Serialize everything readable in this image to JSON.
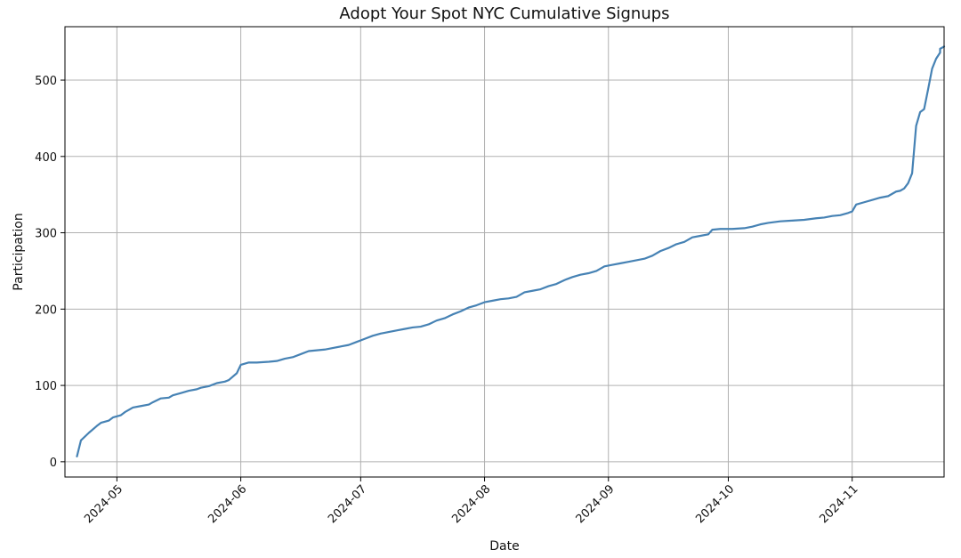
{
  "chart_data": {
    "type": "line",
    "title": "Adopt Your Spot NYC Cumulative Signups",
    "xlabel": "Date",
    "ylabel": "Participation",
    "x_range": [
      "2024-04-18",
      "2024-11-24"
    ],
    "ylim": [
      -20,
      570
    ],
    "grid": true,
    "x_ticks": [
      {
        "date": "2024-05-01",
        "label": "2024-05"
      },
      {
        "date": "2024-06-01",
        "label": "2024-06"
      },
      {
        "date": "2024-07-01",
        "label": "2024-07"
      },
      {
        "date": "2024-08-01",
        "label": "2024-08"
      },
      {
        "date": "2024-09-01",
        "label": "2024-09"
      },
      {
        "date": "2024-10-01",
        "label": "2024-10"
      },
      {
        "date": "2024-11-01",
        "label": "2024-11"
      }
    ],
    "y_ticks": [
      0,
      100,
      200,
      300,
      400,
      500
    ],
    "series": [
      {
        "color": "#4682b4",
        "points": [
          [
            "2024-04-21",
            7
          ],
          [
            "2024-04-22",
            28
          ],
          [
            "2024-04-24",
            38
          ],
          [
            "2024-04-26",
            47
          ],
          [
            "2024-04-27",
            51
          ],
          [
            "2024-04-29",
            54
          ],
          [
            "2024-04-30",
            58
          ],
          [
            "2024-05-02",
            61
          ],
          [
            "2024-05-03",
            65
          ],
          [
            "2024-05-05",
            71
          ],
          [
            "2024-05-07",
            73
          ],
          [
            "2024-05-09",
            75
          ],
          [
            "2024-05-10",
            78
          ],
          [
            "2024-05-12",
            83
          ],
          [
            "2024-05-14",
            84
          ],
          [
            "2024-05-15",
            87
          ],
          [
            "2024-05-17",
            90
          ],
          [
            "2024-05-19",
            93
          ],
          [
            "2024-05-21",
            95
          ],
          [
            "2024-05-22",
            97
          ],
          [
            "2024-05-24",
            99
          ],
          [
            "2024-05-26",
            103
          ],
          [
            "2024-05-28",
            105
          ],
          [
            "2024-05-29",
            107
          ],
          [
            "2024-05-31",
            116
          ],
          [
            "2024-06-01",
            127
          ],
          [
            "2024-06-03",
            130
          ],
          [
            "2024-06-05",
            130
          ],
          [
            "2024-06-08",
            131
          ],
          [
            "2024-06-10",
            132
          ],
          [
            "2024-06-12",
            135
          ],
          [
            "2024-06-14",
            137
          ],
          [
            "2024-06-16",
            141
          ],
          [
            "2024-06-18",
            145
          ],
          [
            "2024-06-20",
            146
          ],
          [
            "2024-06-22",
            147
          ],
          [
            "2024-06-24",
            149
          ],
          [
            "2024-06-26",
            151
          ],
          [
            "2024-06-28",
            153
          ],
          [
            "2024-06-30",
            157
          ],
          [
            "2024-07-02",
            161
          ],
          [
            "2024-07-04",
            165
          ],
          [
            "2024-07-06",
            168
          ],
          [
            "2024-07-08",
            170
          ],
          [
            "2024-07-10",
            172
          ],
          [
            "2024-07-12",
            174
          ],
          [
            "2024-07-14",
            176
          ],
          [
            "2024-07-16",
            177
          ],
          [
            "2024-07-18",
            180
          ],
          [
            "2024-07-20",
            185
          ],
          [
            "2024-07-22",
            188
          ],
          [
            "2024-07-24",
            193
          ],
          [
            "2024-07-26",
            197
          ],
          [
            "2024-07-28",
            202
          ],
          [
            "2024-07-30",
            205
          ],
          [
            "2024-08-01",
            209
          ],
          [
            "2024-08-03",
            211
          ],
          [
            "2024-08-05",
            213
          ],
          [
            "2024-08-07",
            214
          ],
          [
            "2024-08-09",
            216
          ],
          [
            "2024-08-11",
            222
          ],
          [
            "2024-08-13",
            224
          ],
          [
            "2024-08-15",
            226
          ],
          [
            "2024-08-17",
            230
          ],
          [
            "2024-08-19",
            233
          ],
          [
            "2024-08-21",
            238
          ],
          [
            "2024-08-23",
            242
          ],
          [
            "2024-08-25",
            245
          ],
          [
            "2024-08-27",
            247
          ],
          [
            "2024-08-29",
            250
          ],
          [
            "2024-08-31",
            256
          ],
          [
            "2024-09-02",
            258
          ],
          [
            "2024-09-04",
            260
          ],
          [
            "2024-09-06",
            262
          ],
          [
            "2024-09-08",
            264
          ],
          [
            "2024-09-10",
            266
          ],
          [
            "2024-09-12",
            270
          ],
          [
            "2024-09-14",
            276
          ],
          [
            "2024-09-16",
            280
          ],
          [
            "2024-09-18",
            285
          ],
          [
            "2024-09-20",
            288
          ],
          [
            "2024-09-22",
            294
          ],
          [
            "2024-09-24",
            296
          ],
          [
            "2024-09-26",
            298
          ],
          [
            "2024-09-27",
            304
          ],
          [
            "2024-09-29",
            305
          ],
          [
            "2024-10-02",
            305
          ],
          [
            "2024-10-05",
            306
          ],
          [
            "2024-10-07",
            308
          ],
          [
            "2024-10-09",
            311
          ],
          [
            "2024-10-11",
            313
          ],
          [
            "2024-10-14",
            315
          ],
          [
            "2024-10-17",
            316
          ],
          [
            "2024-10-20",
            317
          ],
          [
            "2024-10-23",
            319
          ],
          [
            "2024-10-25",
            320
          ],
          [
            "2024-10-27",
            322
          ],
          [
            "2024-10-29",
            323
          ],
          [
            "2024-10-31",
            326
          ],
          [
            "2024-11-01",
            328
          ],
          [
            "2024-11-02",
            337
          ],
          [
            "2024-11-04",
            340
          ],
          [
            "2024-11-06",
            343
          ],
          [
            "2024-11-08",
            346
          ],
          [
            "2024-11-10",
            348
          ],
          [
            "2024-11-12",
            354
          ],
          [
            "2024-11-13",
            355
          ],
          [
            "2024-11-14",
            358
          ],
          [
            "2024-11-15",
            365
          ],
          [
            "2024-11-16",
            378
          ],
          [
            "2024-11-17",
            440
          ],
          [
            "2024-11-18",
            458
          ],
          [
            "2024-11-19",
            462
          ],
          [
            "2024-11-20",
            488
          ],
          [
            "2024-11-21",
            515
          ],
          [
            "2024-11-22",
            528
          ],
          [
            "2024-11-23",
            536
          ],
          [
            "2024-11-23",
            541
          ],
          [
            "2024-11-24",
            544
          ]
        ]
      }
    ]
  }
}
